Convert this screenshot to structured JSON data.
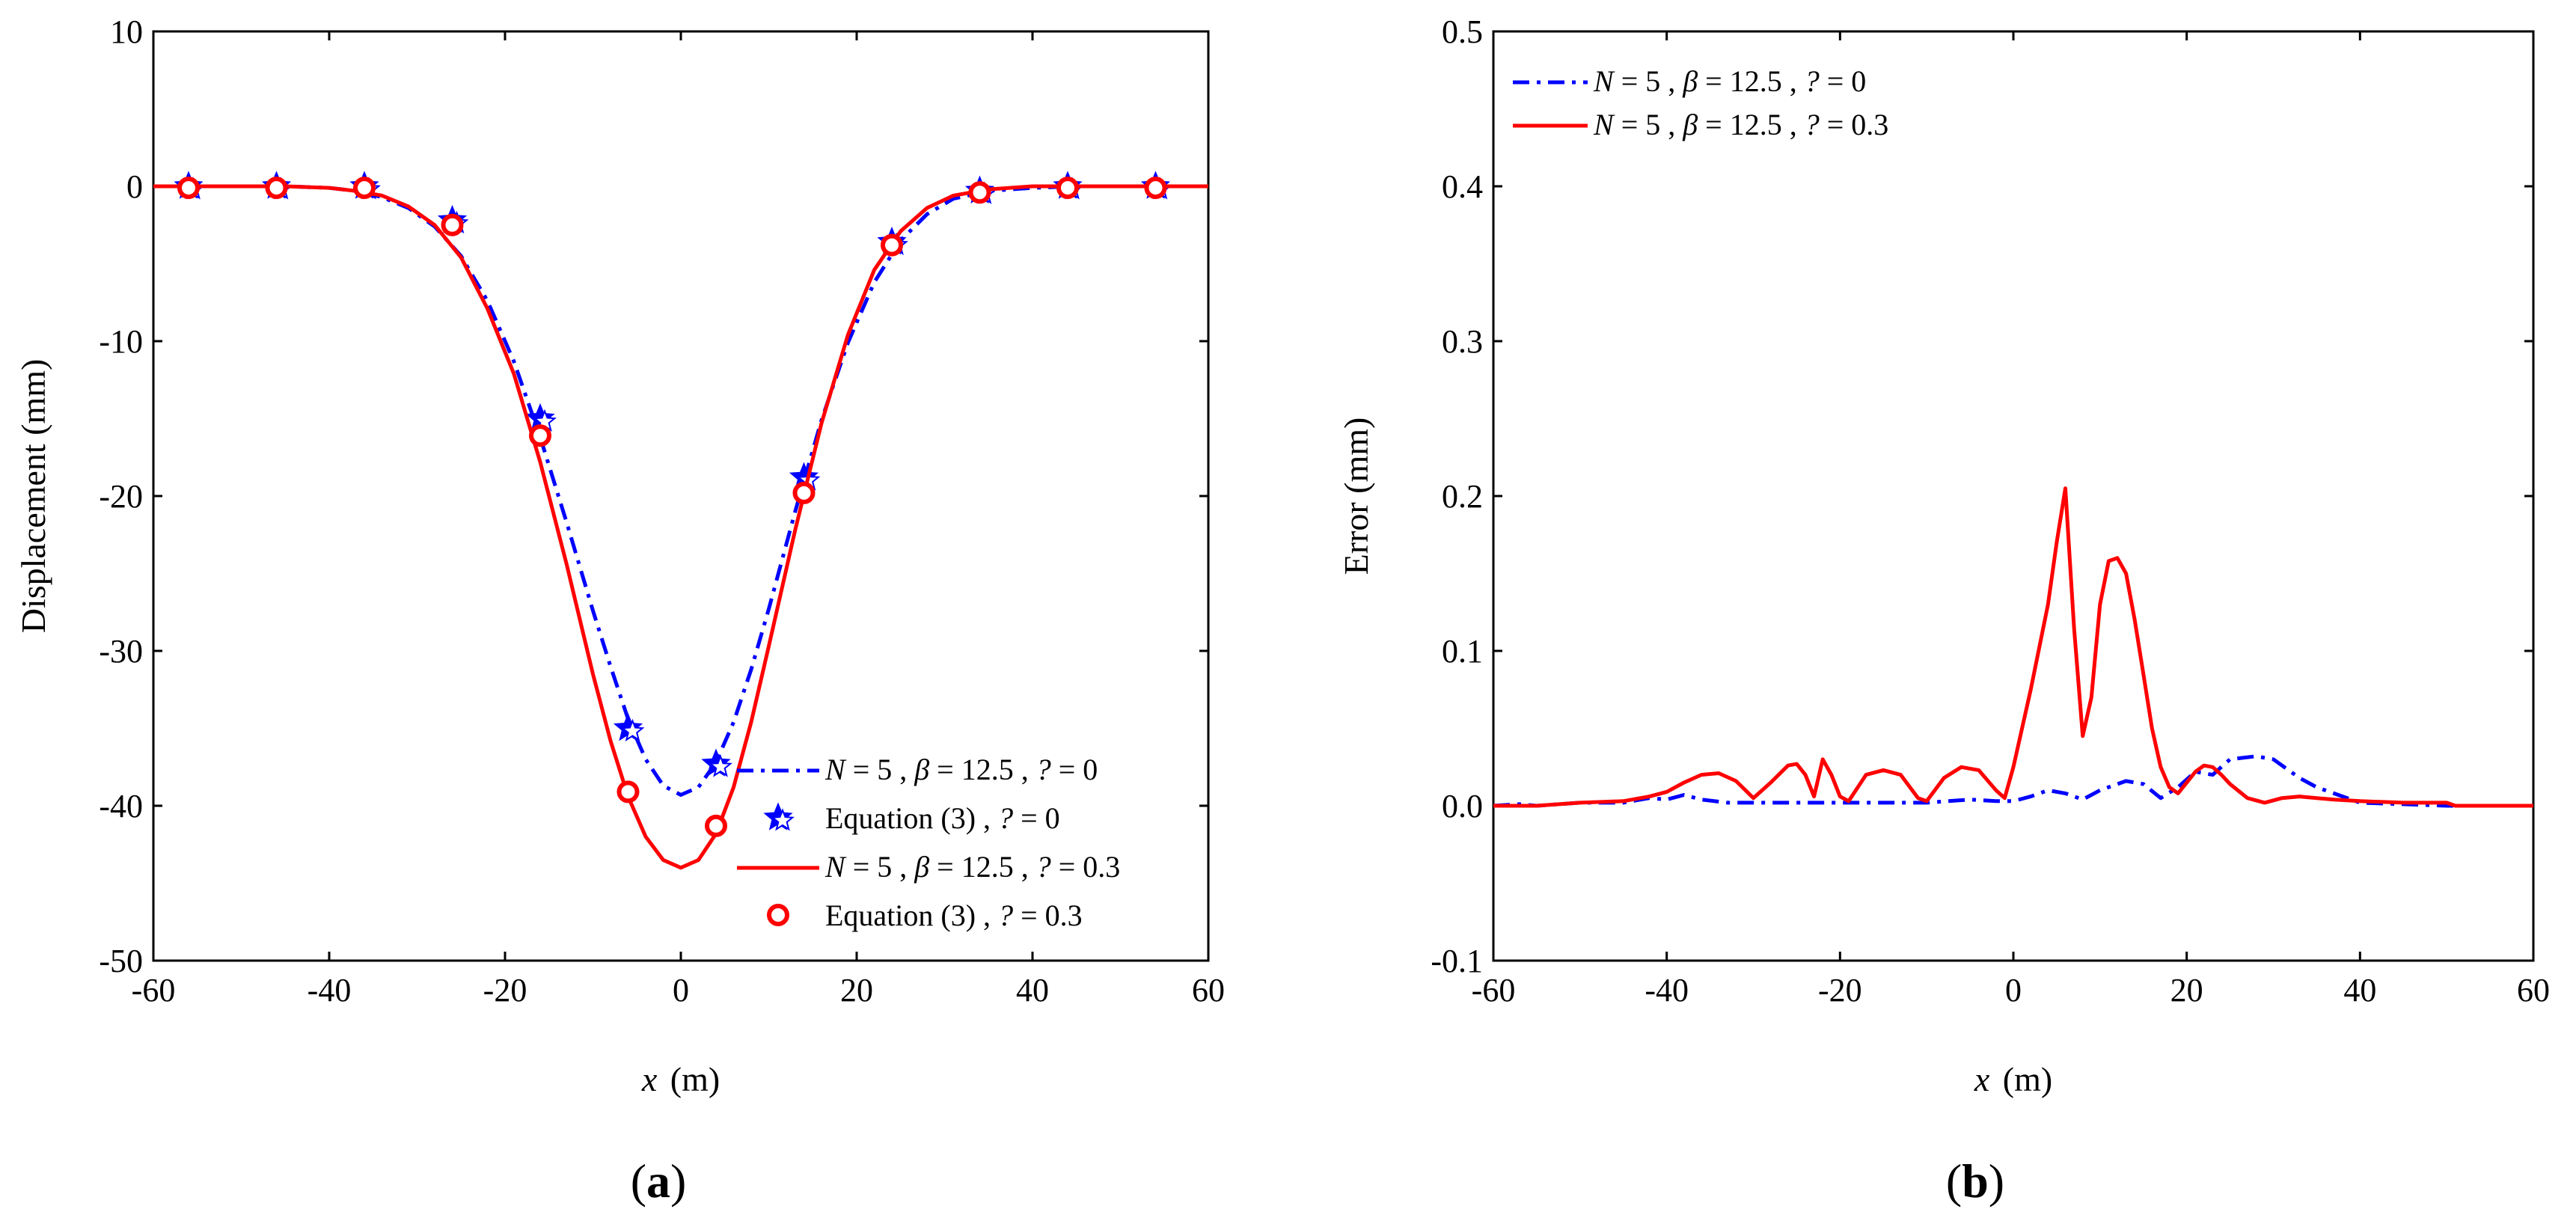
{
  "chart_data": [
    {
      "type": "line",
      "panel": "a",
      "title": "",
      "xlabel": "x (m)",
      "ylabel": "Displacement (mm)",
      "xlim": [
        -60,
        60
      ],
      "ylim": [
        -50,
        10
      ],
      "xticks": [
        -60,
        -40,
        -20,
        0,
        20,
        40,
        60
      ],
      "yticks": [
        10,
        0,
        -10,
        -20,
        -30,
        -40,
        -50
      ],
      "xtick_labels": [
        "-60",
        "-40",
        "-20",
        "0",
        "20",
        "40",
        "60"
      ],
      "ytick_labels": [
        "10",
        "0",
        "-10",
        "-20",
        "-30",
        "-40",
        "-50"
      ],
      "legend_position": "bottom-right",
      "series": [
        {
          "name": "N = 5 , β = 12.5 , ? = 0",
          "legend": {
            "var": "N",
            "rest": " = 5 , ",
            "var2": "β",
            "rest2": " = 12.5 , ",
            "var3": "?",
            "rest3": " = 0"
          },
          "style": "dashdot",
          "color": "#0000ff",
          "x": [
            -60,
            -45,
            -40,
            -37,
            -34,
            -31,
            -28,
            -25,
            -22,
            -19,
            -16,
            -13,
            -10,
            -8,
            -6,
            -4,
            -2,
            0,
            2,
            4,
            6,
            8,
            10,
            13,
            16,
            19,
            22,
            25,
            28,
            31,
            35,
            40,
            45,
            60
          ],
          "y": [
            0,
            0,
            -0.1,
            -0.3,
            -0.7,
            -1.4,
            -2.6,
            -4.5,
            -7.4,
            -11.3,
            -16.2,
            -21.7,
            -27.4,
            -31.0,
            -34.4,
            -37.0,
            -38.7,
            -39.3,
            -38.8,
            -37.2,
            -34.6,
            -31.2,
            -27.3,
            -21.0,
            -15.1,
            -10.1,
            -6.2,
            -3.5,
            -1.8,
            -0.8,
            -0.3,
            -0.1,
            0,
            0
          ]
        },
        {
          "name": "Equation (3) , ? = 0",
          "legend": {
            "var": "",
            "rest": "Equation (3) , ",
            "var2": "?",
            "rest2": " = 0",
            "var3": "",
            "rest3": ""
          },
          "style": "star",
          "color": "#0000ff",
          "x": [
            -56,
            -46,
            -36,
            -26,
            -16,
            -6,
            4,
            14,
            24,
            34,
            44,
            54
          ],
          "y": [
            0,
            0,
            0,
            -2.2,
            -15.0,
            -35.0,
            -37.3,
            -18.8,
            -3.6,
            -0.3,
            0,
            0
          ]
        },
        {
          "name": "N = 5 , β = 12.5 , ? = 0.3",
          "legend": {
            "var": "N",
            "rest": " = 5 , ",
            "var2": "β",
            "rest2": " = 12.5 , ",
            "var3": "?",
            "rest3": " = 0.3"
          },
          "style": "solid",
          "color": "#ff0000",
          "x": [
            -60,
            -45,
            -40,
            -37,
            -34,
            -31,
            -28,
            -25,
            -22,
            -19,
            -16,
            -13,
            -10,
            -8,
            -6,
            -4,
            -2,
            0,
            2,
            4,
            6,
            8,
            10,
            13,
            16,
            19,
            22,
            25,
            28,
            31,
            35,
            40,
            45,
            60
          ],
          "y": [
            0,
            0,
            -0.1,
            -0.3,
            -0.6,
            -1.3,
            -2.5,
            -4.6,
            -7.9,
            -12.1,
            -17.8,
            -24.4,
            -31.5,
            -35.8,
            -39.4,
            -42.0,
            -43.5,
            -44.0,
            -43.5,
            -41.8,
            -38.8,
            -34.6,
            -29.7,
            -22.2,
            -15.3,
            -9.6,
            -5.4,
            -2.9,
            -1.4,
            -0.6,
            -0.2,
            0,
            0,
            0
          ]
        },
        {
          "name": "Equation (3) , ? = 0.3",
          "legend": {
            "var": "",
            "rest": "Equation (3) , ",
            "var2": "?",
            "rest2": " = 0.3",
            "var3": "",
            "rest3": ""
          },
          "style": "circle",
          "color": "#ff0000",
          "x": [
            -56,
            -46,
            -36,
            -26,
            -16,
            -6,
            4,
            14,
            24,
            34,
            44,
            54
          ],
          "y": [
            -0.1,
            -0.1,
            -0.1,
            -2.5,
            -16.1,
            -39.1,
            -41.3,
            -19.8,
            -3.8,
            -0.4,
            -0.1,
            -0.1
          ]
        }
      ]
    },
    {
      "type": "line",
      "panel": "b",
      "title": "",
      "xlabel": "x (m)",
      "ylabel": "Error (mm)",
      "xlim": [
        -60,
        60
      ],
      "ylim": [
        -0.1,
        0.5
      ],
      "xticks": [
        -60,
        -40,
        -20,
        0,
        20,
        40,
        60
      ],
      "yticks": [
        0.5,
        0.4,
        0.3,
        0.2,
        0.1,
        0.0,
        -0.1
      ],
      "xtick_labels": [
        "-60",
        "-40",
        "-20",
        "0",
        "20",
        "40",
        "60"
      ],
      "ytick_labels": [
        "0.5",
        "0.4",
        "0.3",
        "0.2",
        "0.1",
        "0.0",
        "-0.1"
      ],
      "legend_position": "top-left",
      "series": [
        {
          "name": "N = 5 , β = 12.5 , ? = 0",
          "legend": {
            "var": "N",
            "rest": " = 5 , ",
            "var2": "β",
            "rest2": " = 12.5 , ",
            "var3": "?",
            "rest3": " = 0"
          },
          "style": "dashdot",
          "color": "#0000ff",
          "x": [
            -60,
            -57,
            -55,
            -50,
            -45,
            -42,
            -40,
            -38,
            -36,
            -33,
            -30,
            -25,
            -20,
            -15,
            -10,
            -5,
            -2,
            0,
            2,
            4,
            6,
            8,
            10,
            13,
            15,
            17,
            19,
            21,
            23,
            25,
            28,
            30,
            33,
            35,
            38,
            40,
            45,
            50,
            60
          ],
          "y": [
            0,
            0.001,
            0,
            0.002,
            0.002,
            0.005,
            0.004,
            0.007,
            0.004,
            0.002,
            0.002,
            0.002,
            0.002,
            0.002,
            0.002,
            0.004,
            0.003,
            0.003,
            0.006,
            0.01,
            0.008,
            0.004,
            0.01,
            0.016,
            0.014,
            0.005,
            0.012,
            0.022,
            0.02,
            0.03,
            0.032,
            0.03,
            0.018,
            0.012,
            0.006,
            0.002,
            0.001,
            0,
            0
          ]
        },
        {
          "name": "N = 5 , β = 12.5 , ? = 0.3",
          "legend": {
            "var": "N",
            "rest": " = 5 , ",
            "var2": "β",
            "rest2": " = 12.5 , ",
            "var3": "?",
            "rest3": " = 0.3"
          },
          "style": "solid",
          "color": "#ff0000",
          "x": [
            -60,
            -55,
            -50,
            -45,
            -42,
            -40,
            -38,
            -36,
            -34,
            -32,
            -30,
            -28,
            -26,
            -25,
            -24,
            -23,
            -22,
            -21,
            -20,
            -19,
            -17,
            -15,
            -13,
            -11,
            -10,
            -8,
            -6,
            -4,
            -2,
            -1,
            0,
            2,
            4,
            5,
            6,
            7,
            8,
            9,
            10,
            11,
            12,
            13,
            14,
            15,
            16,
            17,
            18,
            19,
            20,
            21,
            22,
            23,
            24,
            25,
            27,
            29,
            31,
            33,
            35,
            37,
            40,
            45,
            50,
            51,
            55,
            60
          ],
          "y": [
            0,
            0,
            0.002,
            0.003,
            0.006,
            0.009,
            0.015,
            0.02,
            0.021,
            0.016,
            0.005,
            0.015,
            0.026,
            0.027,
            0.02,
            0.006,
            0.03,
            0.02,
            0.006,
            0.003,
            0.02,
            0.023,
            0.02,
            0.005,
            0.003,
            0.018,
            0.025,
            0.023,
            0.01,
            0.005,
            0.025,
            0.075,
            0.13,
            0.17,
            0.205,
            0.115,
            0.045,
            0.07,
            0.13,
            0.158,
            0.16,
            0.15,
            0.12,
            0.085,
            0.05,
            0.025,
            0.012,
            0.008,
            0.015,
            0.022,
            0.026,
            0.025,
            0.02,
            0.014,
            0.005,
            0.002,
            0.005,
            0.006,
            0.005,
            0.004,
            0.003,
            0.002,
            0.002,
            0,
            0,
            0
          ]
        }
      ]
    }
  ],
  "panel_labels": [
    "a",
    "b"
  ]
}
